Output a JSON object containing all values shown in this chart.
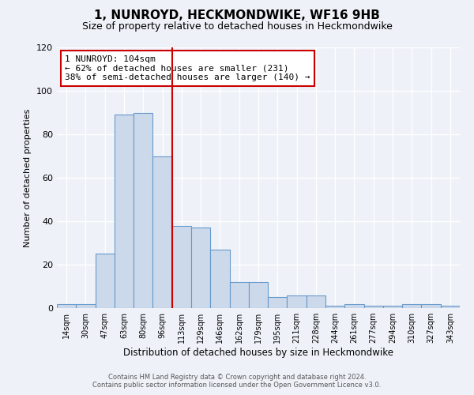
{
  "title": "1, NUNROYD, HECKMONDWIKE, WF16 9HB",
  "subtitle": "Size of property relative to detached houses in Heckmondwike",
  "xlabel": "Distribution of detached houses by size in Heckmondwike",
  "ylabel": "Number of detached properties",
  "footer_line1": "Contains HM Land Registry data © Crown copyright and database right 2024.",
  "footer_line2": "Contains public sector information licensed under the Open Government Licence v3.0.",
  "bin_labels": [
    "14sqm",
    "30sqm",
    "47sqm",
    "63sqm",
    "80sqm",
    "96sqm",
    "113sqm",
    "129sqm",
    "146sqm",
    "162sqm",
    "179sqm",
    "195sqm",
    "211sqm",
    "228sqm",
    "244sqm",
    "261sqm",
    "277sqm",
    "294sqm",
    "310sqm",
    "327sqm",
    "343sqm"
  ],
  "bar_values": [
    2,
    2,
    25,
    89,
    90,
    70,
    38,
    37,
    27,
    12,
    12,
    5,
    6,
    6,
    1,
    2,
    1,
    1,
    2,
    2,
    1
  ],
  "bar_color": "#ccd9ea",
  "bar_edge_color": "#6699cc",
  "vline_x": 5,
  "vline_color": "#cc0000",
  "n_bins": 21,
  "ylim": [
    0,
    120
  ],
  "yticks": [
    0,
    20,
    40,
    60,
    80,
    100,
    120
  ],
  "annotation_title": "1 NUNROYD: 104sqm",
  "annotation_line1": "← 62% of detached houses are smaller (231)",
  "annotation_line2": "38% of semi-detached houses are larger (140) →",
  "annotation_box_color": "#ffffff",
  "annotation_box_edge": "#cc0000",
  "background_color": "#eef2f8",
  "title_fontsize": 11,
  "subtitle_fontsize": 9,
  "ylabel_fontsize": 8,
  "xlabel_fontsize": 8.5
}
